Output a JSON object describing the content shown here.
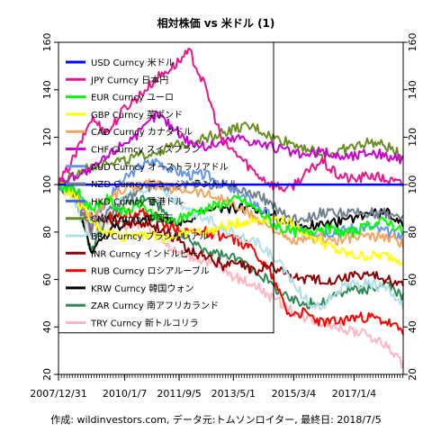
{
  "chart_data": {
    "type": "line",
    "title": "相対株価 vs 米ドル (1)",
    "footer": "作成: wildinvestors.com, データ元:トムソンロイター, 最終日: 2018/7/5",
    "x_tick_labels": [
      "2007/12/31",
      "2010/1/7",
      "2011/9/5",
      "2013/5/1",
      "2015/3/4",
      "2017/1/4"
    ],
    "x_tick_dates": [
      "2007-12-31",
      "2010-01-07",
      "2011-09-05",
      "2013-05-01",
      "2015-03-04",
      "2017-01-04"
    ],
    "x_range": [
      "2007-12-31",
      "2018-07-05"
    ],
    "ylim": [
      20,
      160
    ],
    "y_ticks": [
      20,
      40,
      60,
      80,
      100,
      120,
      140,
      160
    ],
    "legend_position": "top-left",
    "series": [
      {
        "name": "USD Curncy 米ドル",
        "color": "#0000ff",
        "values": [
          100,
          100,
          100,
          100,
          100,
          100,
          100,
          100,
          100,
          100,
          100,
          100,
          100,
          100,
          100,
          100,
          100,
          100,
          100,
          100,
          100,
          100
        ]
      },
      {
        "name": "JPY Curncy 日本円",
        "color": "#e8168c",
        "values": [
          100,
          112,
          128,
          122,
          132,
          138,
          145,
          150,
          156,
          140,
          118,
          112,
          105,
          100,
          98,
          104,
          110,
          104,
          102,
          104,
          102,
          100
        ]
      },
      {
        "name": "EUR Curncy ユーロ",
        "color": "#00ff00",
        "values": [
          100,
          98,
          90,
          94,
          88,
          92,
          86,
          84,
          88,
          90,
          92,
          94,
          90,
          84,
          80,
          80,
          82,
          80,
          80,
          83,
          85,
          80
        ]
      },
      {
        "name": "GBP Curncy 英ポンド",
        "color": "#ffff00",
        "values": [
          100,
          95,
          84,
          80,
          78,
          80,
          78,
          78,
          80,
          80,
          82,
          84,
          85,
          86,
          84,
          80,
          76,
          72,
          70,
          70,
          70,
          68
        ]
      },
      {
        "name": "CAD Curncy カナダドル",
        "color": "#f4a460",
        "values": [
          100,
          96,
          86,
          94,
          98,
          100,
          100,
          98,
          98,
          96,
          94,
          90,
          86,
          82,
          76,
          76,
          78,
          76,
          78,
          78,
          78,
          75
        ]
      },
      {
        "name": "CHF Curncy スイスフラン",
        "color": "#cc00cc",
        "values": [
          100,
          104,
          106,
          112,
          118,
          122,
          130,
          124,
          118,
          116,
          118,
          120,
          118,
          116,
          114,
          112,
          114,
          112,
          112,
          114,
          112,
          110
        ]
      },
      {
        "name": "AUD Curncy オーストラリアドル",
        "color": "#6495ed",
        "values": [
          100,
          98,
          84,
          94,
          102,
          108,
          110,
          106,
          104,
          104,
          100,
          96,
          92,
          86,
          82,
          80,
          80,
          80,
          82,
          82,
          80,
          78
        ]
      },
      {
        "name": "NZD Curncy ニュージーランドドル",
        "color": "#708090",
        "values": [
          100,
          96,
          80,
          88,
          94,
          98,
          100,
          98,
          100,
          100,
          100,
          98,
          96,
          92,
          86,
          86,
          88,
          88,
          88,
          88,
          88,
          86
        ]
      },
      {
        "name": "HKD Curncy 香港ドル",
        "color": "#4169e1",
        "values": [
          100,
          100,
          100,
          100,
          100,
          100,
          100,
          100,
          100,
          100,
          100,
          100,
          100,
          100,
          100,
          100,
          100,
          100,
          100,
          100,
          100,
          100
        ]
      },
      {
        "name": "CNY Curncy 中国元",
        "color": "#6b8e23",
        "values": [
          100,
          104,
          108,
          110,
          110,
          112,
          114,
          116,
          118,
          120,
          122,
          124,
          124,
          120,
          118,
          116,
          112,
          114,
          116,
          118,
          116,
          112
        ]
      },
      {
        "name": "BRL Curncy ブラジルレアル",
        "color": "#b0e0e6",
        "values": [
          100,
          92,
          76,
          88,
          94,
          98,
          100,
          94,
          88,
          86,
          82,
          78,
          76,
          70,
          62,
          52,
          48,
          56,
          58,
          58,
          56,
          48
        ]
      },
      {
        "name": "INR Curncy インドルピー",
        "color": "#8b0000",
        "values": [
          100,
          94,
          86,
          86,
          84,
          84,
          82,
          78,
          72,
          70,
          66,
          66,
          64,
          66,
          62,
          60,
          60,
          60,
          62,
          62,
          60,
          58
        ]
      },
      {
        "name": "RUB Curncy ロシアルーブル",
        "color": "#ff0000",
        "values": [
          100,
          98,
          82,
          86,
          88,
          88,
          86,
          82,
          80,
          80,
          78,
          76,
          72,
          62,
          46,
          46,
          42,
          42,
          44,
          44,
          42,
          38
        ]
      },
      {
        "name": "KRW Curncy 韓国ウォン",
        "color": "#000000",
        "values": [
          100,
          96,
          72,
          80,
          84,
          86,
          86,
          84,
          86,
          88,
          90,
          90,
          90,
          88,
          84,
          82,
          84,
          84,
          86,
          88,
          88,
          84
        ]
      },
      {
        "name": "ZAR Curncy 南アフリカランド",
        "color": "#2e8b57",
        "values": [
          100,
          96,
          72,
          86,
          92,
          94,
          92,
          82,
          76,
          72,
          70,
          68,
          64,
          58,
          52,
          50,
          50,
          54,
          56,
          56,
          58,
          52
        ]
      },
      {
        "name": "TRY Curncy 新トルコリラ",
        "color": "#ffb6c1",
        "values": [
          100,
          96,
          78,
          84,
          82,
          84,
          80,
          72,
          70,
          68,
          64,
          60,
          58,
          52,
          48,
          44,
          42,
          40,
          38,
          36,
          32,
          24
        ]
      }
    ]
  }
}
